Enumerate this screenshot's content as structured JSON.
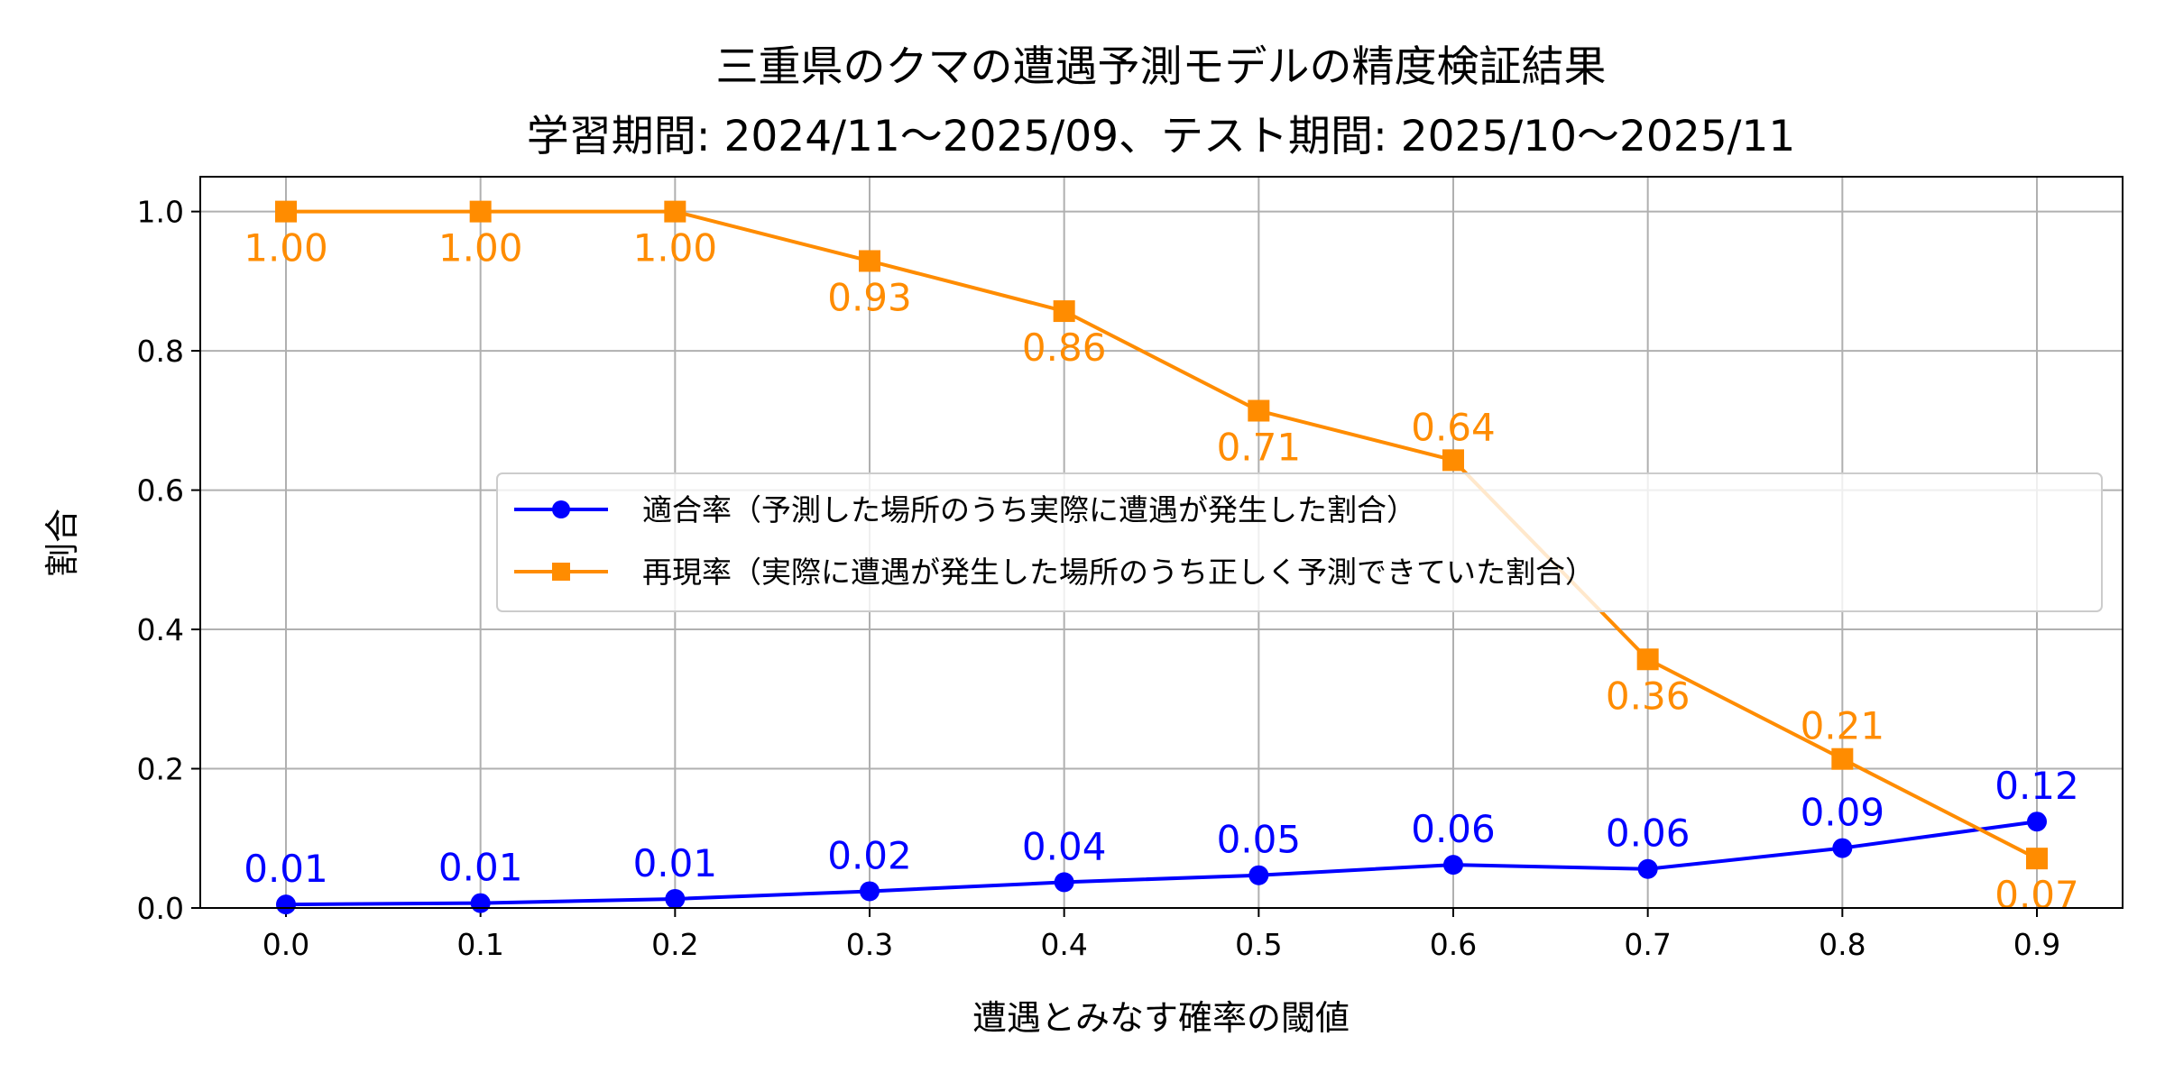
{
  "chart_data": {
    "type": "line",
    "title": "三重県のクマの遭遇予測モデルの精度検証結果",
    "subtitle": "学習期間: 2024/11〜2025/09、テスト期間: 2025/10〜2025/11",
    "xlabel": "遭遇とみなす確率の閾値",
    "ylabel": "割合",
    "x": [
      0.0,
      0.1,
      0.2,
      0.3,
      0.4,
      0.5,
      0.6,
      0.7,
      0.8,
      0.9
    ],
    "xticks": [
      "0.0",
      "0.1",
      "0.2",
      "0.3",
      "0.4",
      "0.5",
      "0.6",
      "0.7",
      "0.8",
      "0.9"
    ],
    "yticks": [
      "0.0",
      "0.2",
      "0.4",
      "0.6",
      "0.8",
      "1.0"
    ],
    "ylim": [
      0,
      1.05
    ],
    "grid": true,
    "legend_position": "center-right",
    "series": [
      {
        "name": "適合率（予測した場所のうち実際に遭遇が発生した割合）",
        "color": "#0000ff",
        "marker": "circle",
        "values": [
          0.005,
          0.007,
          0.013,
          0.024,
          0.037,
          0.047,
          0.062,
          0.056,
          0.086,
          0.124
        ],
        "labels": [
          "0.01",
          "0.01",
          "0.01",
          "0.02",
          "0.04",
          "0.05",
          "0.06",
          "0.06",
          "0.09",
          "0.12"
        ]
      },
      {
        "name": "再現率（実際に遭遇が発生した場所のうち正しく予測できていた割合）",
        "color": "#ff8c00",
        "marker": "square",
        "values": [
          1.0,
          1.0,
          1.0,
          0.929,
          0.857,
          0.714,
          0.643,
          0.357,
          0.214,
          0.071
        ],
        "labels": [
          "1.00",
          "1.00",
          "1.00",
          "0.93",
          "0.86",
          "0.71",
          "0.64",
          "0.36",
          "0.21",
          "0.07"
        ]
      }
    ]
  }
}
